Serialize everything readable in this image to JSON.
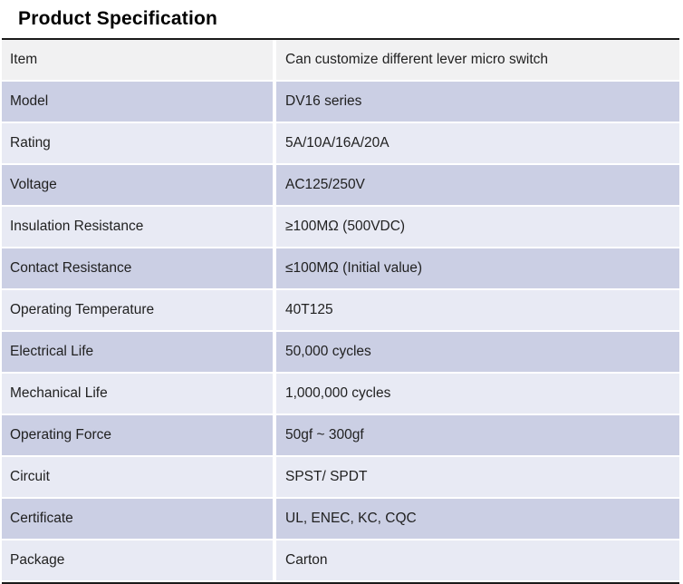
{
  "page": {
    "title": "Product Specification"
  },
  "colors": {
    "first_row_bg": "#f1f1f2",
    "alt_row_dark_bg": "#cbcfe4",
    "alt_row_light_bg": "#e8eaf4",
    "table_border": "#1a1a1a",
    "text": "#212121"
  },
  "table": {
    "rows": [
      {
        "label": "Item",
        "value": "Can customize different lever micro switch"
      },
      {
        "label": "Model",
        "value": "DV16 series"
      },
      {
        "label": "Rating",
        "value": "5A/10A/16A/20A"
      },
      {
        "label": "Voltage",
        "value": "AC125/250V"
      },
      {
        "label": "Insulation Resistance",
        "value": "≥100MΩ (500VDC)"
      },
      {
        "label": "Contact Resistance",
        "value": "≤100MΩ (Initial value)"
      },
      {
        "label": "Operating Temperature",
        "value": "40T125"
      },
      {
        "label": "Electrical Life",
        "value": "50,000 cycles"
      },
      {
        "label": "Mechanical Life",
        "value": "1,000,000 cycles"
      },
      {
        "label": "Operating Force",
        "value": "50gf ~ 300gf"
      },
      {
        "label": "Circuit",
        "value": "SPST/ SPDT"
      },
      {
        "label": "Certificate",
        "value": "UL, ENEC, KC, CQC"
      },
      {
        "label": "Package",
        "value": "Carton"
      }
    ]
  }
}
